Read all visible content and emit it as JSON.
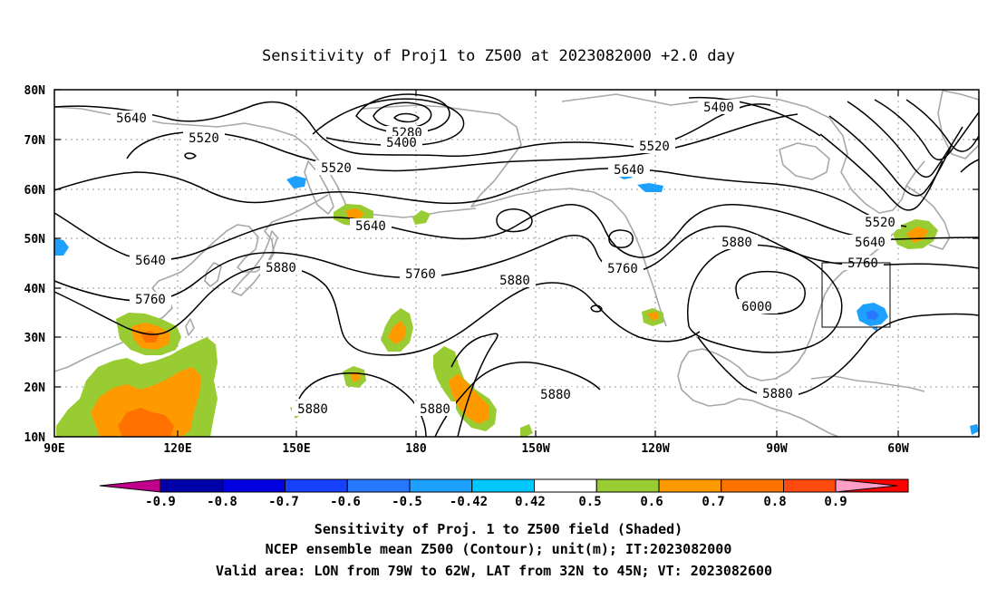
{
  "title": "Sensitivity of Proj1 to Z500 at 2023082000 +2.0 day",
  "map": {
    "lat_labels": [
      "80N",
      "70N",
      "60N",
      "50N",
      "40N",
      "30N",
      "20N",
      "10N"
    ],
    "lon_labels": [
      "90E",
      "120E",
      "150E",
      "180",
      "150W",
      "120W",
      "90W",
      "60W"
    ],
    "valid_box": {
      "lon": [
        "79W",
        "62W"
      ],
      "lat": [
        "32N",
        "45N"
      ]
    }
  },
  "contours": {
    "labels": [
      "5640",
      "5520",
      "5280",
      "5400",
      "5520",
      "5400",
      "5520",
      "5640",
      "5640",
      "5640",
      "5880",
      "5760",
      "5760",
      "5880",
      "5760",
      "5880",
      "6000",
      "5520",
      "5640",
      "5760",
      "5880",
      "5880",
      "5880",
      "5880"
    ]
  },
  "colorbar": {
    "labels": [
      "-0.9",
      "-0.8",
      "-0.7",
      "-0.6",
      "-0.5",
      "-0.42",
      "0.42",
      "0.5",
      "0.6",
      "0.7",
      "0.8",
      "0.9"
    ],
    "colors": [
      "#c0008b",
      "#0000a8",
      "#0000e0",
      "#1840ff",
      "#2878ff",
      "#1ea0ff",
      "#00c8ff",
      "#ffffff",
      "#99cc33",
      "#ff9900",
      "#ff7200",
      "#ff4a10",
      "#ff0000",
      "#ff9ec8"
    ]
  },
  "shading_colors": {
    "green": "#99cc33",
    "orange": "#ff9900",
    "dark_orange": "#ff7200",
    "light_blue": "#1ea0ff",
    "blue": "#2878ff",
    "land_gray": "#a8a8a8"
  },
  "footer": {
    "line1": "Sensitivity of Proj. 1 to Z500 field (Shaded)",
    "line2": "NCEP ensemble mean Z500 (Contour); unit(m); IT:2023082000",
    "line3": "Valid area: LON from 79W to 62W, LAT from 32N to 45N; VT: 2023082600"
  }
}
